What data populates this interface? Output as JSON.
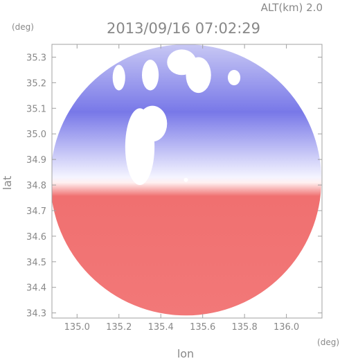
{
  "header": {
    "altitude": "ALT(km) 2.0",
    "timestamp": "2013/09/16 07:02:29"
  },
  "chart_data": {
    "type": "heatmap",
    "title": "2013/09/16 07:02:29",
    "xlabel": "lon",
    "ylabel": "lat",
    "xunit": "(deg)",
    "yunit": "(deg)",
    "xlim": [
      134.88,
      136.17
    ],
    "ylim": [
      34.28,
      35.35
    ],
    "xticks": [
      135.0,
      135.2,
      135.4,
      135.6,
      135.8,
      136.0
    ],
    "xtick_labels": [
      "135.0",
      "135.2",
      "135.4",
      "135.6",
      "135.8",
      "136.0"
    ],
    "yticks": [
      34.3,
      34.4,
      34.5,
      34.6,
      34.7,
      34.8,
      34.9,
      35.0,
      35.1,
      35.2,
      35.3
    ],
    "ytick_labels": [
      "34.3",
      "34.4",
      "34.5",
      "34.6",
      "34.7",
      "34.8",
      "34.9",
      "35.0",
      "35.1",
      "35.2",
      "35.3"
    ],
    "radar_center": {
      "lon": 135.52,
      "lat": 34.82
    },
    "coverage_radius_deg_lat": 0.53,
    "colors": {
      "north_field": "#7878e8",
      "south_field": "#f07070",
      "near_zero": "#f4f4ff"
    },
    "gaps": [
      {
        "lon": 135.3,
        "lat": 34.95,
        "rx": 0.07,
        "ry": 0.15
      },
      {
        "lon": 135.36,
        "lat": 35.04,
        "rx": 0.07,
        "ry": 0.07
      },
      {
        "lon": 135.35,
        "lat": 35.23,
        "rx": 0.04,
        "ry": 0.06
      },
      {
        "lon": 135.58,
        "lat": 35.23,
        "rx": 0.06,
        "ry": 0.07
      },
      {
        "lon": 135.5,
        "lat": 35.28,
        "rx": 0.07,
        "ry": 0.05
      },
      {
        "lon": 135.2,
        "lat": 35.22,
        "rx": 0.03,
        "ry": 0.05
      },
      {
        "lon": 135.75,
        "lat": 35.22,
        "rx": 0.03,
        "ry": 0.03
      }
    ]
  }
}
